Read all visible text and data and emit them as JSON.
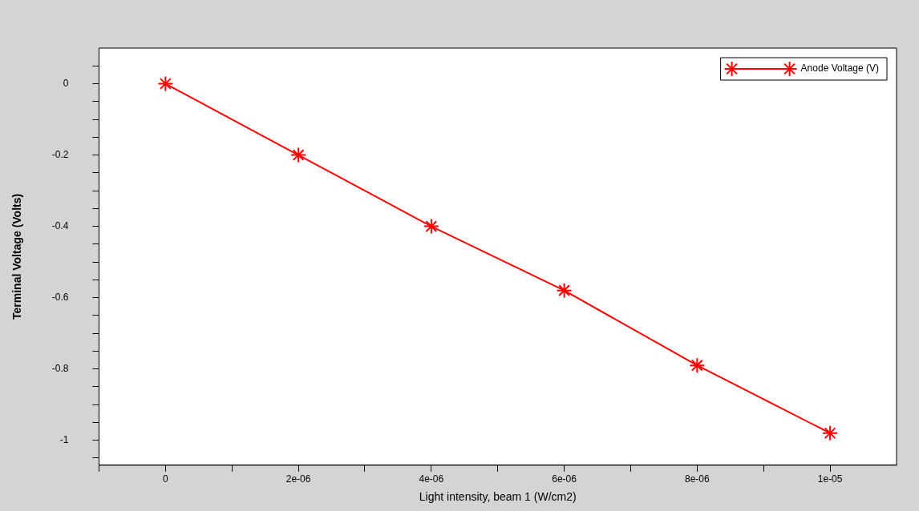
{
  "chart_data": {
    "type": "line",
    "xlabel": "Light intensity, beam 1 (W/cm2)",
    "ylabel": "Terminal Voltage (Volts)",
    "x": [
      0,
      2e-06,
      4e-06,
      6e-06,
      8e-06,
      1e-05
    ],
    "series": [
      {
        "name": "Anode Voltage (V)",
        "color": "#ff0000",
        "values": [
          0,
          -0.2,
          -0.4,
          -0.58,
          -0.79,
          -0.98
        ]
      }
    ],
    "xlim": [
      -1e-06,
      1.1e-05
    ],
    "ylim": [
      -1.07,
      0.1
    ],
    "xticks": [
      {
        "value": -1e-06,
        "label": null
      },
      0,
      {
        "value": 1e-06,
        "label": null
      },
      {
        "value": 2e-06,
        "label": "2e-06"
      },
      {
        "value": 3e-06,
        "label": null
      },
      {
        "value": 4e-06,
        "label": "4e-06"
      },
      {
        "value": 5e-06,
        "label": null
      },
      {
        "value": 6e-06,
        "label": "6e-06"
      },
      {
        "value": 7e-06,
        "label": null
      },
      {
        "value": 8e-06,
        "label": "8e-06"
      },
      {
        "value": 9e-06,
        "label": null
      },
      {
        "value": 1e-05,
        "label": "1e-05"
      }
    ],
    "yticks": [
      {
        "value": 0.05,
        "label": null
      },
      0,
      {
        "value": -0.05,
        "label": null
      },
      {
        "value": -0.1,
        "label": null
      },
      {
        "value": -0.15,
        "label": null
      },
      -0.2,
      {
        "value": -0.25,
        "label": null
      },
      {
        "value": -0.3,
        "label": null
      },
      {
        "value": -0.35,
        "label": null
      },
      -0.4,
      {
        "value": -0.45,
        "label": null
      },
      {
        "value": -0.5,
        "label": null
      },
      {
        "value": -0.55,
        "label": null
      },
      -0.6,
      {
        "value": -0.65,
        "label": null
      },
      {
        "value": -0.7,
        "label": null
      },
      {
        "value": -0.75,
        "label": null
      },
      -0.8,
      {
        "value": -0.85,
        "label": null
      },
      {
        "value": -0.9,
        "label": null
      },
      {
        "value": -0.95,
        "label": null
      },
      -1,
      {
        "value": -1.05,
        "label": null
      }
    ],
    "grid": false,
    "legend": "top right",
    "marker": "cross",
    "line_style": "solid"
  }
}
